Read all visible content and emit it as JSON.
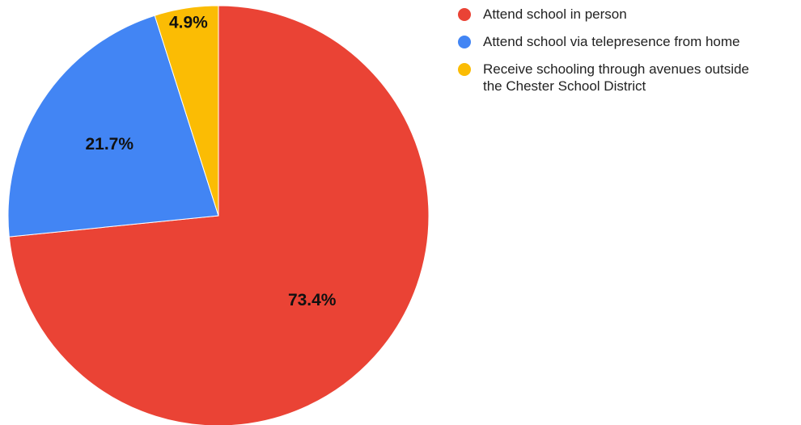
{
  "chart_data": {
    "type": "pie",
    "title": "",
    "start": "top, clockwise",
    "legend_position": "right",
    "slices": [
      {
        "label": "Attend school in person",
        "value": 73.4,
        "display": "73.4%",
        "color": "#ea4335"
      },
      {
        "label": "Attend school via telepresence from home",
        "value": 21.7,
        "display": "21.7%",
        "color": "#4285f4"
      },
      {
        "label": "Receive schooling through avenues outside the Chester School District",
        "value": 4.9,
        "display": "4.9%",
        "color": "#fbbc04"
      }
    ]
  }
}
